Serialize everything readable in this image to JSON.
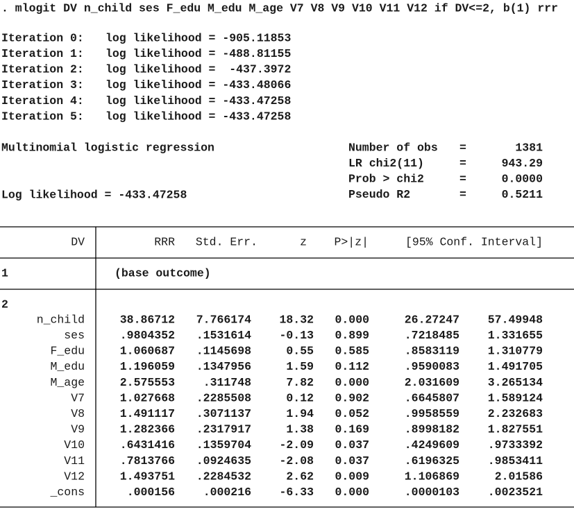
{
  "command": ". mlogit DV n_child ses F_edu M_edu M_age V7 V8 V9 V10 V11 V12 if DV<=2, b(1) rrr",
  "iterations": [
    {
      "label": "Iteration 0:",
      "text": "log likelihood = -905.11853"
    },
    {
      "label": "Iteration 1:",
      "text": "log likelihood = -488.81155"
    },
    {
      "label": "Iteration 2:",
      "text": "log likelihood =  -437.3972"
    },
    {
      "label": "Iteration 3:",
      "text": "log likelihood = -433.48066"
    },
    {
      "label": "Iteration 4:",
      "text": "log likelihood = -433.47258"
    },
    {
      "label": "Iteration 5:",
      "text": "log likelihood = -433.47258"
    }
  ],
  "model_title": "Multinomial logistic regression",
  "log_likelihood": "Log likelihood = -433.47258",
  "stats": [
    {
      "label": "Number of obs",
      "eq": "=",
      "value": "1381"
    },
    {
      "label": "LR chi2(11)",
      "eq": "=",
      "value": "943.29"
    },
    {
      "label": "Prob > chi2",
      "eq": "=",
      "value": "0.0000"
    },
    {
      "label": "Pseudo R2",
      "eq": "=",
      "value": "0.5211"
    }
  ],
  "table": {
    "header": [
      "DV",
      "RRR",
      "Std. Err.",
      "z",
      "P>|z|",
      "[95% Conf. Interval]"
    ],
    "base": {
      "label": "1",
      "note": "(base outcome)"
    },
    "group": "2",
    "rows": [
      [
        "n_child",
        "38.86712",
        "7.766174",
        "18.32",
        "0.000",
        "26.27247",
        "57.49948"
      ],
      [
        "ses",
        ".9804352",
        ".1531614",
        "-0.13",
        "0.899",
        ".7218485",
        "1.331655"
      ],
      [
        "F_edu",
        "1.060687",
        ".1145698",
        "0.55",
        "0.585",
        ".8583119",
        "1.310779"
      ],
      [
        "M_edu",
        "1.196059",
        ".1347956",
        "1.59",
        "0.112",
        ".9590083",
        "1.491705"
      ],
      [
        "M_age",
        "2.575553",
        ".311748",
        "7.82",
        "0.000",
        "2.031609",
        "3.265134"
      ],
      [
        "V7",
        "1.027668",
        ".2285508",
        "0.12",
        "0.902",
        ".6645807",
        "1.589124"
      ],
      [
        "V8",
        "1.491117",
        ".3071137",
        "1.94",
        "0.052",
        ".9958559",
        "2.232683"
      ],
      [
        "V9",
        "1.282366",
        ".2317917",
        "1.38",
        "0.169",
        ".8998182",
        "1.827551"
      ],
      [
        "V10",
        ".6431416",
        ".1359704",
        "-2.09",
        "0.037",
        ".4249609",
        ".9733392"
      ],
      [
        "V11",
        ".7813766",
        ".0924635",
        "-2.08",
        "0.037",
        ".6196325",
        ".9853411"
      ],
      [
        "V12",
        "1.493751",
        ".2284532",
        "2.62",
        "0.009",
        "1.106869",
        "2.01586"
      ],
      [
        "_cons",
        ".000156",
        ".000216",
        "-6.33",
        "0.000",
        ".0000103",
        ".0023521"
      ]
    ]
  }
}
